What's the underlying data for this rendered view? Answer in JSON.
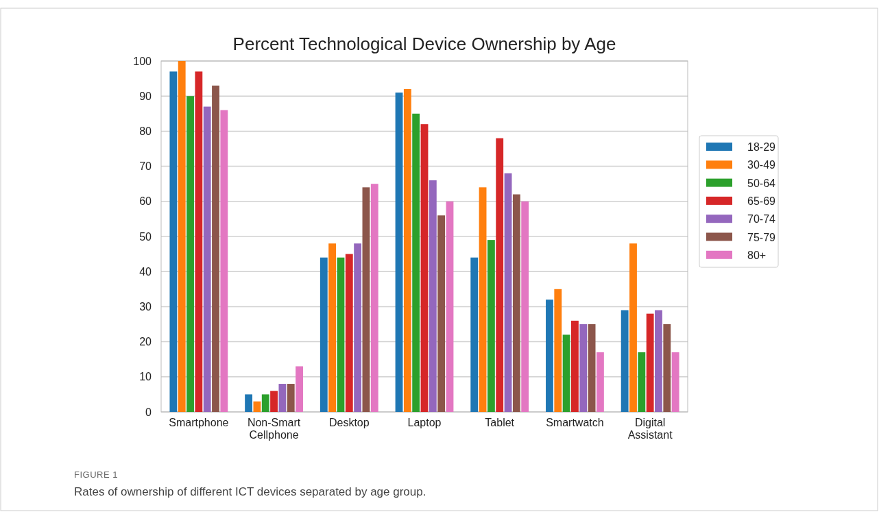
{
  "chart_data": {
    "type": "bar",
    "title": "Percent Technological Device Ownership by Age",
    "categories": [
      "Smartphone",
      "Non-Smart Cellphone",
      "Desktop",
      "Laptop",
      "Tablet",
      "Smartwatch",
      "Digital Assistant"
    ],
    "series": [
      {
        "name": "18-29",
        "color": "#1f77b4",
        "values": [
          97,
          5,
          44,
          91,
          44,
          32,
          29
        ]
      },
      {
        "name": "30-49",
        "color": "#ff7f0e",
        "values": [
          100,
          3,
          48,
          92,
          64,
          35,
          48
        ]
      },
      {
        "name": "50-64",
        "color": "#2ca02c",
        "values": [
          90,
          5,
          44,
          85,
          49,
          22,
          17
        ]
      },
      {
        "name": "65-69",
        "color": "#d62728",
        "values": [
          97,
          6,
          45,
          82,
          78,
          26,
          28
        ]
      },
      {
        "name": "70-74",
        "color": "#9467bd",
        "values": [
          87,
          8,
          48,
          66,
          68,
          25,
          29
        ]
      },
      {
        "name": "75-79",
        "color": "#8c564b",
        "values": [
          93,
          8,
          64,
          56,
          62,
          25,
          25
        ]
      },
      {
        "name": "80+",
        "color": "#e377c2",
        "values": [
          86,
          13,
          65,
          60,
          60,
          17,
          17
        ]
      }
    ],
    "ylim": [
      0,
      100
    ],
    "yticks": [
      0,
      10,
      20,
      30,
      40,
      50,
      60,
      70,
      80,
      90,
      100
    ],
    "grid": "y",
    "legend": "right",
    "annotations": [
      "FIGURE 1",
      "Rates of ownership of different ICT devices separated by age group."
    ]
  }
}
